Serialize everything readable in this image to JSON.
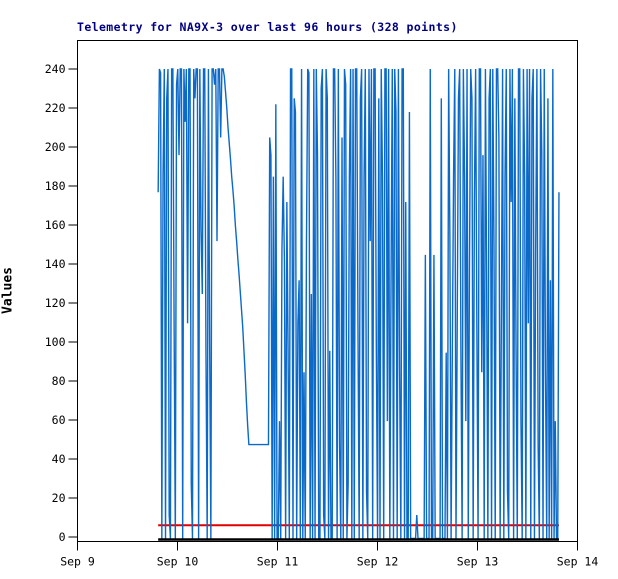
{
  "chart_data": {
    "type": "line",
    "title": "Telemetry for NA9X-3 over last 96 hours (328 points)",
    "title_color": "#000080",
    "ylabel": "Values",
    "xlabel": "",
    "points_count": 328,
    "x_span_hours": 96,
    "x_tick_labels": [
      "Sep 9",
      "Sep 10",
      "Sep 11",
      "Sep 12",
      "Sep 13",
      "Sep 14"
    ],
    "y_tick_min": 0,
    "y_tick_max": 240,
    "y_tick_step": 20,
    "ylim": [
      -4,
      255
    ],
    "grid": false,
    "legend_position": "none",
    "background": "#ffffff",
    "frame_color": "#000000",
    "data_start_frac_of_axis": 0.162,
    "data_end_frac_of_axis": 0.962,
    "series": [
      {
        "name": "telemetry",
        "color": "#0b69c8",
        "values": [
          177,
          240,
          238,
          0,
          186,
          240,
          0,
          225,
          240,
          12,
          0,
          240,
          240,
          110,
          0,
          232,
          240,
          196,
          240,
          240,
          0,
          240,
          213,
          240,
          110,
          240,
          240,
          28,
          0,
          240,
          225,
          240,
          240,
          0,
          240,
          158,
          125,
          240,
          240,
          96,
          0,
          240,
          101,
          0,
          240,
          240,
          232,
          240,
          152,
          240,
          240,
          205,
          240,
          240,
          236,
          228,
          220,
          210,
          202,
          194,
          185,
          178,
          170,
          160,
          152,
          143,
          135,
          126,
          117,
          108,
          96,
          84,
          70,
          58,
          48,
          48,
          48,
          48,
          48,
          48,
          48,
          48,
          48,
          48,
          48,
          48,
          48,
          48,
          48,
          48,
          48,
          205,
          196,
          0,
          185,
          0,
          222,
          0,
          0,
          60,
          0,
          148,
          185,
          142,
          0,
          172,
          96,
          0,
          240,
          240,
          0,
          225,
          218,
          0,
          110,
          132,
          0,
          240,
          0,
          85,
          0,
          152,
          240,
          238,
          0,
          125,
          0,
          240,
          0,
          240,
          196,
          0,
          0,
          230,
          240,
          12,
          0,
          240,
          225,
          0,
          96,
          0,
          0,
          240,
          240,
          185,
          0,
          240,
          48,
          0,
          205,
          0,
          240,
          232,
          0,
          28,
          185,
          240,
          0,
          240,
          0,
          240,
          240,
          110,
          0,
          225,
          240,
          0,
          185,
          240,
          24,
          0,
          240,
          152,
          240,
          0,
          240,
          240,
          96,
          0,
          225,
          0,
          240,
          185,
          0,
          240,
          240,
          60,
          240,
          0,
          132,
          240,
          0,
          240,
          218,
          0,
          240,
          85,
          0,
          240,
          240,
          0,
          172,
          0,
          0,
          218,
          0,
          0,
          0,
          0,
          0,
          12,
          0,
          0,
          0,
          0,
          0,
          0,
          145,
          0,
          0,
          0,
          240,
          0,
          0,
          145,
          0,
          0,
          0,
          0,
          0,
          225,
          0,
          0,
          0,
          95,
          0,
          240,
          155,
          0,
          95,
          185,
          240,
          0,
          110,
          225,
          240,
          96,
          0,
          240,
          185,
          60,
          240,
          0,
          140,
          240,
          225,
          0,
          172,
          240,
          110,
          0,
          240,
          240,
          85,
          196,
          0,
          240,
          132,
          0,
          225,
          240,
          0,
          240,
          148,
          0,
          240,
          240,
          205,
          0,
          110,
          240,
          0,
          185,
          240,
          24,
          0,
          240,
          172,
          240,
          0,
          225,
          96,
          0,
          240,
          240,
          60,
          0,
          240,
          185,
          0,
          240,
          110,
          240,
          0,
          225,
          240,
          0,
          148,
          240,
          48,
          0,
          240,
          196,
          0,
          240,
          85,
          0,
          225,
          0,
          132,
          0,
          240,
          0,
          60,
          0,
          0,
          177
        ]
      }
    ],
    "overlays": [
      {
        "name": "red-threshold-line",
        "value": 6,
        "color": "#e00000",
        "width": 2
      },
      {
        "name": "zero-baseline",
        "value": 0,
        "color": "#000000",
        "width": 2.4
      }
    ]
  }
}
